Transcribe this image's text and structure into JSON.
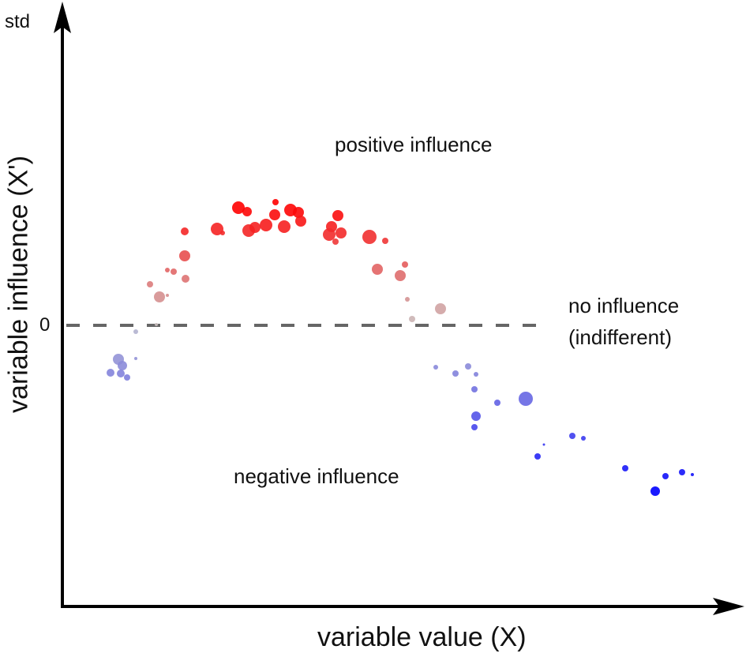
{
  "axes": {
    "y_unit": "std",
    "y_label": "variable influence (X')",
    "x_label": "variable value (X)",
    "zero_tick": "0"
  },
  "annotations": {
    "positive": "positive influence",
    "negative": "negative influence",
    "none_line1": "no influence",
    "none_line2": "(indifferent)"
  },
  "colors": {
    "positive": "#ff0000",
    "negative": "#0000ff",
    "neutral": "#bfb0b8",
    "baseline": "#666666",
    "axis": "#000000"
  }
}
